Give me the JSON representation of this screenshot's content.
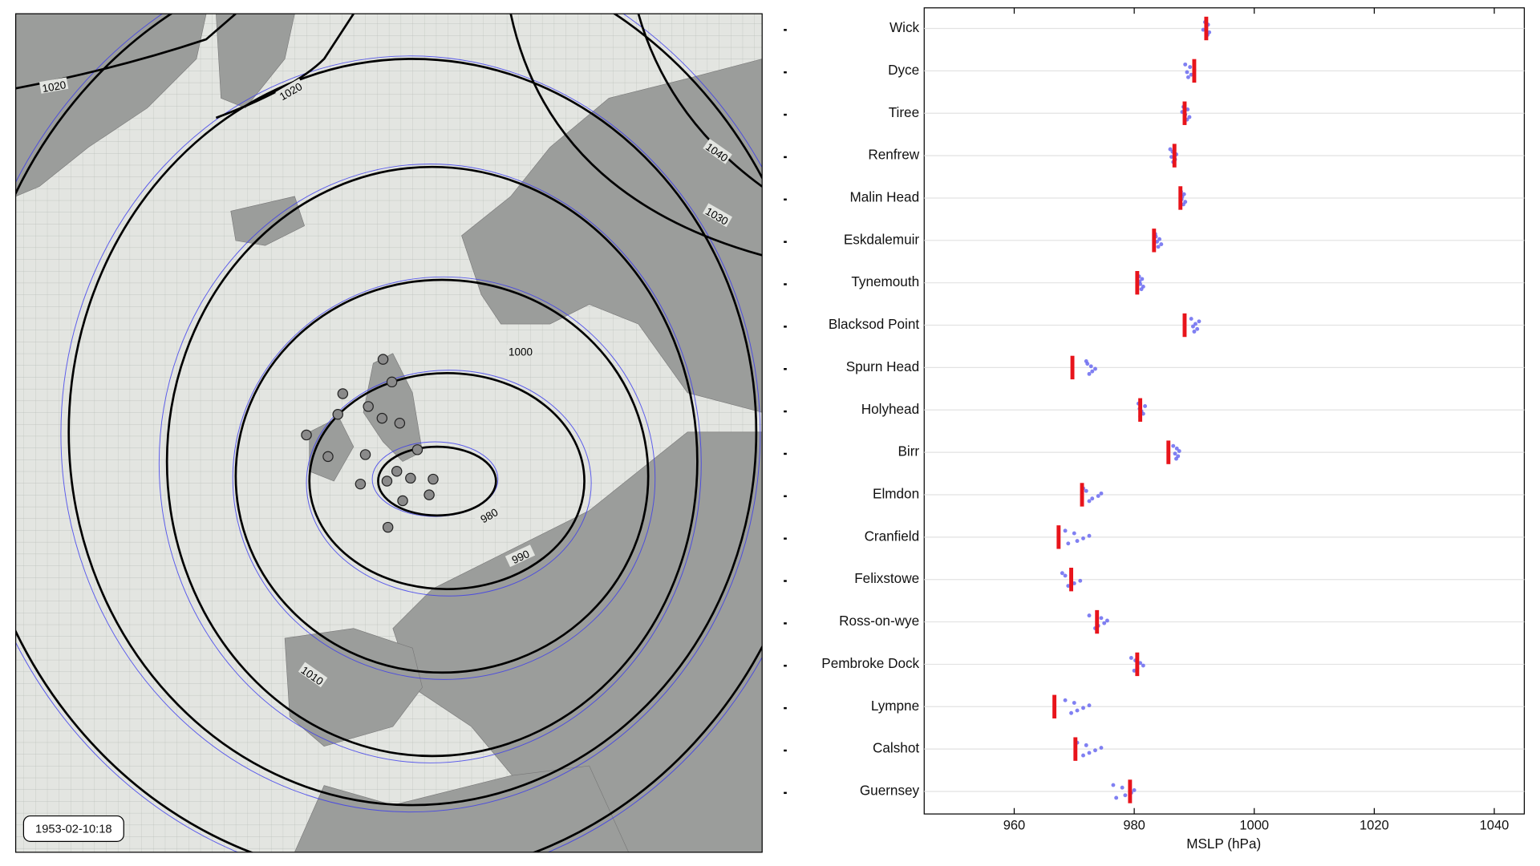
{
  "map": {
    "timestamp": "1953-02-10:18",
    "contour_labels": [
      1020,
      1020,
      1040,
      1030,
      1000,
      980,
      990,
      1010
    ]
  },
  "chart_data": {
    "type": "strip",
    "categories": [
      "Wick",
      "Dyce",
      "Tiree",
      "Renfrew",
      "Malin Head",
      "Eskdalemuir",
      "Tynemouth",
      "Blacksod Point",
      "Spurn Head",
      "Holyhead",
      "Birr",
      "Elmdon",
      "Cranfield",
      "Felixstowe",
      "Ross-on-wye",
      "Pembroke Dock",
      "Lympne",
      "Calshot",
      "Guernsey"
    ],
    "observed": {
      "color": "#e8141b",
      "values": [
        992.0,
        990.0,
        988.4,
        986.7,
        987.7,
        983.3,
        980.5,
        988.4,
        969.7,
        981.0,
        985.7,
        971.3,
        967.4,
        969.5,
        973.8,
        980.5,
        966.7,
        970.2,
        979.3
      ]
    },
    "ensemble": {
      "color": "#6a6af0",
      "values": [
        [
          991.8,
          992.2,
          992.5,
          991.5,
          992.0,
          992.3
        ],
        [
          988.5,
          989.0,
          989.5,
          988.8,
          990.0,
          989.3
        ],
        [
          988.2,
          988.8,
          989.2,
          988.5,
          988.0,
          988.9
        ],
        [
          986.0,
          986.5,
          986.8,
          986.2,
          987.0,
          986.4
        ],
        [
          987.8,
          988.2,
          988.5,
          987.9,
          988.0,
          988.3
        ],
        [
          983.5,
          984.0,
          984.5,
          983.8,
          984.2,
          983.6
        ],
        [
          980.8,
          981.2,
          981.5,
          981.0,
          980.9,
          981.3
        ],
        [
          989.5,
          990.0,
          990.5,
          989.8,
          990.2,
          990.8
        ],
        [
          972.0,
          972.5,
          973.0,
          973.5,
          972.8,
          972.2
        ],
        [
          980.7,
          981.0,
          981.5,
          981.2,
          980.9,
          981.8
        ],
        [
          986.5,
          987.0,
          987.3,
          986.8,
          987.5,
          987.1
        ],
        [
          971.5,
          972.5,
          973.0,
          974.0,
          974.5,
          972.0
        ],
        [
          968.5,
          969.0,
          970.5,
          971.5,
          972.5,
          970.0
        ],
        [
          968.0,
          969.0,
          970.0,
          971.0,
          969.5,
          968.5
        ],
        [
          972.5,
          973.5,
          974.0,
          975.0,
          975.5,
          974.5
        ],
        [
          979.5,
          980.0,
          980.5,
          981.5,
          981.0,
          980.2
        ],
        [
          968.5,
          969.5,
          970.5,
          971.5,
          972.5,
          970.0
        ],
        [
          970.5,
          971.5,
          972.5,
          973.5,
          974.5,
          972.0
        ],
        [
          976.5,
          977.0,
          978.5,
          979.5,
          980.0,
          978.0
        ]
      ]
    },
    "xlabel": "MSLP (hPa)",
    "xlim": [
      945,
      1045
    ],
    "xticks": [
      960,
      980,
      1000,
      1020,
      1040
    ],
    "grid": true
  }
}
